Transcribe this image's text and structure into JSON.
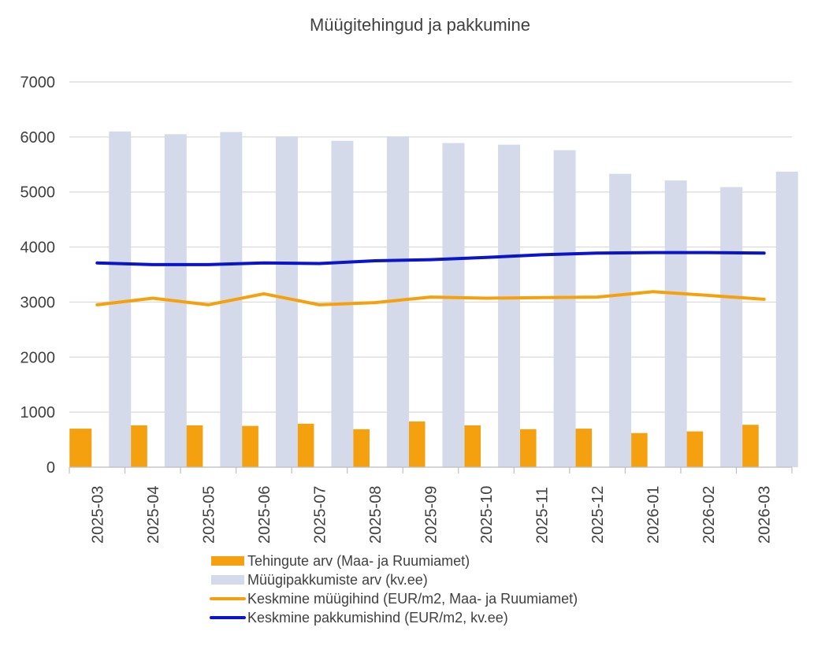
{
  "chart_data": {
    "type": "bar",
    "title": "Müügitehingud ja pakkumine",
    "xlabel": "",
    "ylabel": "",
    "ylim": [
      0,
      7000
    ],
    "yticks": [
      0,
      1000,
      2000,
      3000,
      4000,
      5000,
      6000,
      7000
    ],
    "grid": true,
    "legend_position": "bottom",
    "categories": [
      "2025-03",
      "2025-04",
      "2025-05",
      "2025-06",
      "2025-07",
      "2025-08",
      "2025-09",
      "2025-10",
      "2025-11",
      "2025-12",
      "2026-01",
      "2026-02",
      "2026-03"
    ],
    "series": [
      {
        "name": "Tehingute arv (Maa- ja Ruumiamet)",
        "kind": "bar",
        "color": "#F5A10F",
        "values": [
          700,
          760,
          760,
          750,
          790,
          690,
          830,
          760,
          690,
          700,
          620,
          650,
          770
        ]
      },
      {
        "name": "Müügipakkumiste arv (kv.ee)",
        "kind": "bar",
        "color": "#D5DAEA",
        "values": [
          6100,
          6050,
          6090,
          6010,
          5930,
          6010,
          5890,
          5860,
          5760,
          5330,
          5210,
          5090,
          5370
        ]
      },
      {
        "name": "Keskmine müügihind (EUR/m2, Maa- ja Ruumiamet)",
        "kind": "line",
        "color": "#F5A10F",
        "values": [
          2950,
          3070,
          2950,
          3150,
          2950,
          2990,
          3090,
          3070,
          3080,
          3090,
          3190,
          3120,
          3050
        ]
      },
      {
        "name": "Keskmine pakkumishind (EUR/m2, kv.ee)",
        "kind": "line",
        "color": "#0A14C8",
        "values": [
          3710,
          3680,
          3680,
          3710,
          3700,
          3750,
          3770,
          3810,
          3860,
          3890,
          3900,
          3900,
          3890
        ]
      }
    ]
  }
}
